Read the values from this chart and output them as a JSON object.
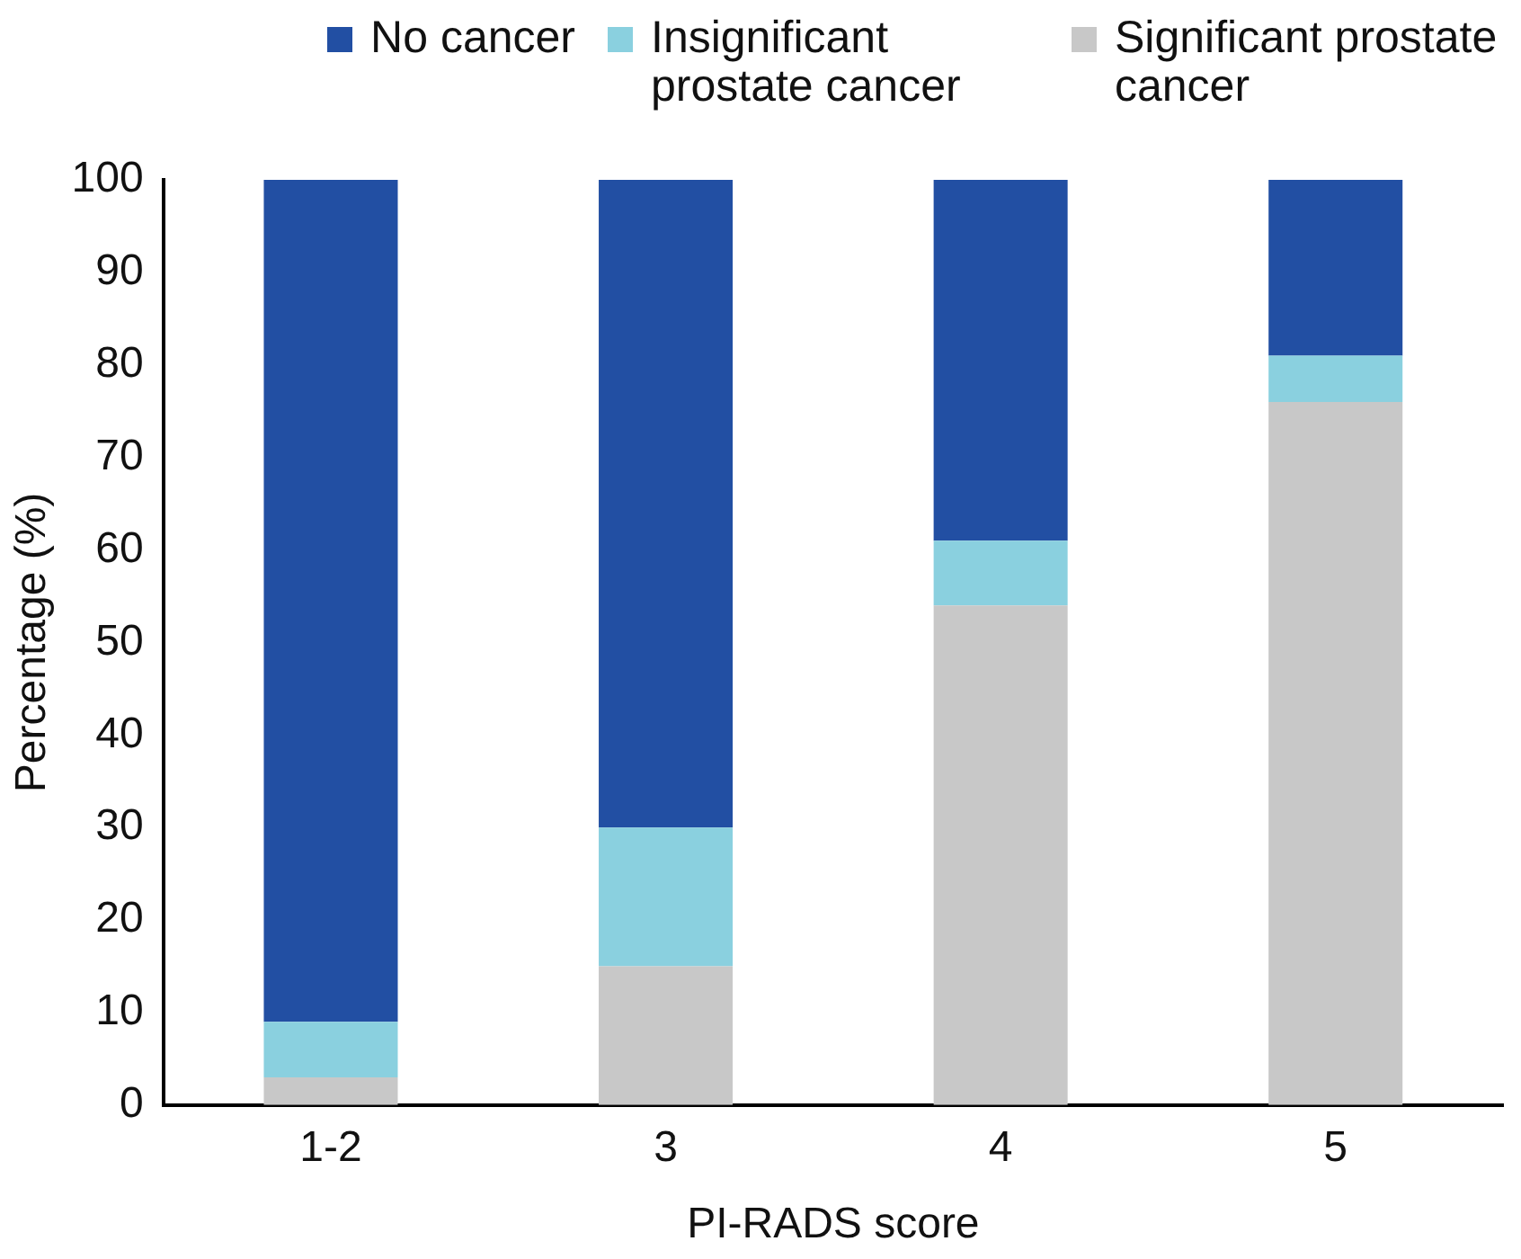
{
  "chart_data": {
    "type": "bar",
    "stacked": true,
    "xlabel": "PI-RADS score",
    "ylabel": "Percentage (%)",
    "categories": [
      "1-2",
      "3",
      "4",
      "5"
    ],
    "series": [
      {
        "name": "Significant prostate cancer",
        "color": "#c8c8c8",
        "values": [
          3,
          15,
          54,
          76
        ]
      },
      {
        "name": "Insignificant prostate cancer",
        "color": "#8ad0df",
        "values": [
          6,
          15,
          7,
          5
        ]
      },
      {
        "name": "No cancer",
        "color": "#224fa3",
        "values": [
          91,
          70,
          39,
          19
        ]
      }
    ],
    "ylim": [
      0,
      100
    ],
    "yticks": [
      0,
      10,
      20,
      30,
      40,
      50,
      60,
      70,
      80,
      90,
      100
    ],
    "legend": "top"
  }
}
